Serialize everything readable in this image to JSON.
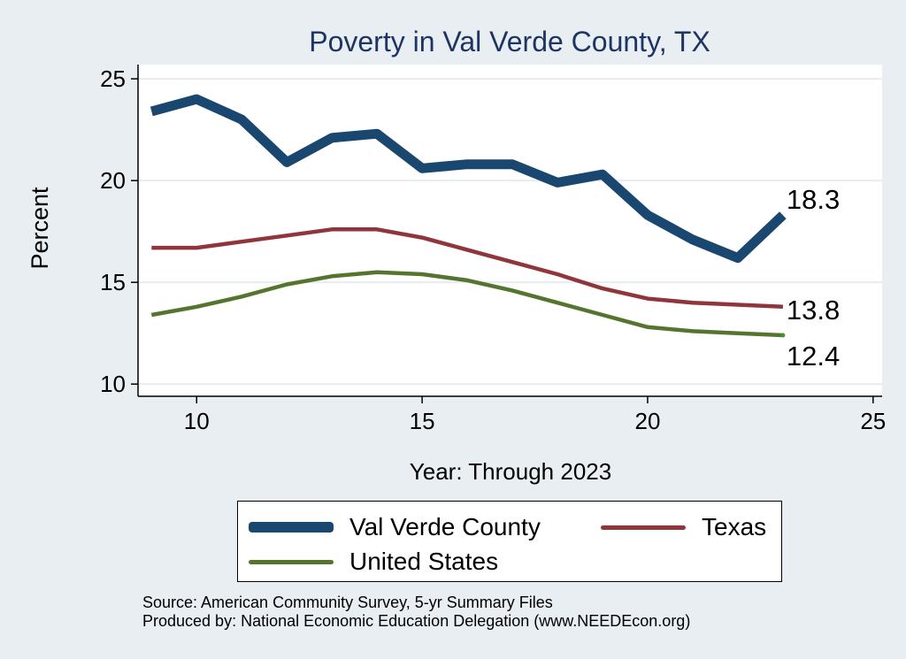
{
  "chart_data": {
    "type": "line",
    "title": "Poverty in Val Verde County, TX",
    "xlabel": "Year: Through 2023",
    "ylabel": "Percent",
    "xlim": [
      8.7,
      25.2
    ],
    "ylim": [
      9.4,
      25.7
    ],
    "xticks": [
      10,
      15,
      20,
      25
    ],
    "yticks": [
      10,
      15,
      20,
      25
    ],
    "grid": "horizontal",
    "x": [
      9,
      10,
      11,
      12,
      13,
      14,
      15,
      16,
      17,
      18,
      19,
      20,
      21,
      22,
      23
    ],
    "series": [
      {
        "name": "Val Verde County",
        "color": "#1a476f",
        "values": [
          23.4,
          24.0,
          23.0,
          20.9,
          22.1,
          22.3,
          20.6,
          20.8,
          20.8,
          19.9,
          20.3,
          18.3,
          17.1,
          16.2,
          18.3
        ],
        "end_label": "18.3"
      },
      {
        "name": "Texas",
        "color": "#90353b",
        "values": [
          16.7,
          16.7,
          17.0,
          17.3,
          17.6,
          17.6,
          17.2,
          16.6,
          16.0,
          15.4,
          14.7,
          14.2,
          14.0,
          13.9,
          13.8
        ],
        "end_label": "13.8"
      },
      {
        "name": "United States",
        "color": "#55752f",
        "values": [
          13.4,
          13.8,
          14.3,
          14.9,
          15.3,
          15.5,
          15.4,
          15.1,
          14.6,
          14.0,
          13.4,
          12.8,
          12.6,
          12.5,
          12.4
        ],
        "end_label": "12.4"
      }
    ],
    "legend_position": "bottom"
  },
  "footer": {
    "source": "Source: American Community Survey, 5-yr Summary Files",
    "produced": "Produced by: National Economic Education Delegation (www.NEEDEcon.org)"
  }
}
